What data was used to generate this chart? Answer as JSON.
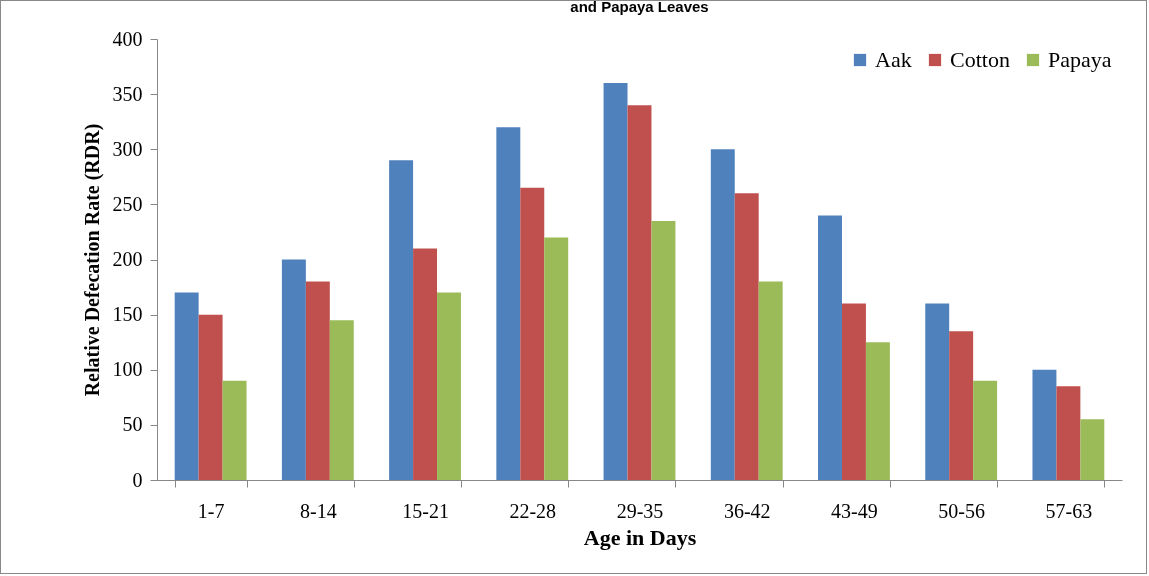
{
  "chart_data": {
    "type": "bar",
    "title": "and Papaya Leaves",
    "xlabel": "Age in Days",
    "ylabel": "Relative Defecation Rate (RDR)",
    "categories": [
      "1-7",
      "8-14",
      "15-21",
      "22-28",
      "29-35",
      "36-42",
      "43-49",
      "50-56",
      "57-63"
    ],
    "series": [
      {
        "name": "Aak",
        "color": "#4f81bd",
        "values": [
          170,
          200,
          290,
          320,
          360,
          300,
          240,
          160,
          100
        ]
      },
      {
        "name": "Cotton",
        "color": "#c0504d",
        "values": [
          150,
          180,
          210,
          265,
          340,
          260,
          160,
          135,
          85
        ]
      },
      {
        "name": "Papaya",
        "color": "#9bbb59",
        "values": [
          90,
          145,
          170,
          220,
          235,
          180,
          125,
          90,
          55
        ]
      }
    ],
    "ylim": [
      0,
      400
    ],
    "yticks": [
      0,
      50,
      100,
      150,
      200,
      250,
      300,
      350,
      400
    ],
    "grid": false,
    "legend": "top right"
  }
}
